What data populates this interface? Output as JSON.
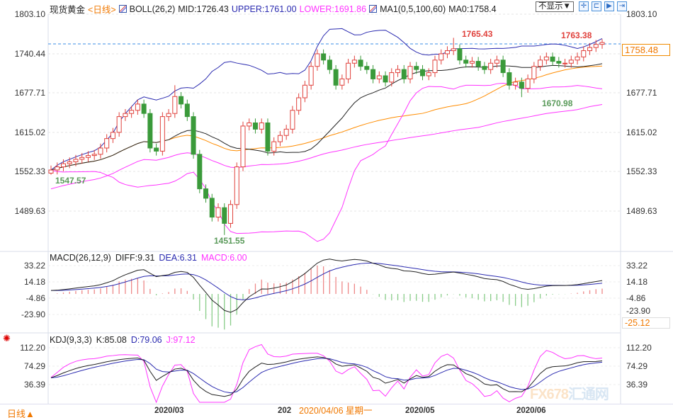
{
  "header": {
    "symbol": "现货黄金",
    "period": "<日线>",
    "boll": "BOLL(26,2)",
    "mid": "MID:1726.43",
    "upper": "UPPER:1761.00",
    "lower": "LOWER:1691.86",
    "ma": "MA1(0,5,100,60)",
    "ma0": "MA0:1758.4"
  },
  "toolbar": {
    "display_select": "不显示▼",
    "buttons": [
      "crosshair",
      "zoom-fit",
      "play",
      "go-end"
    ]
  },
  "price_axis": [
    "1803.10",
    "1740.44",
    "1677.71",
    "1615.02",
    "1552.33",
    "1489.63"
  ],
  "current_price": "1758.48",
  "annotations": {
    "high1": "1765.43",
    "high2": "1763.38",
    "low_jun": "1670.98",
    "low_feb": "1547.57",
    "low_mar": "1451.55"
  },
  "macd": {
    "title": "MACD(26,12,9)",
    "diff": "DIFF:9.31",
    "dea": "DEA:6.31",
    "macd": "MACD:6.00",
    "axis": [
      "33.22",
      "14.18",
      "-4.86",
      "-23.90"
    ],
    "cursor_value": "-25.12"
  },
  "kdj": {
    "title": "KDJ(9,3,3)",
    "k": "K:85.08",
    "d": "D:79.06",
    "j": "J:97.12",
    "axis": [
      "112.20",
      "74.29",
      "36.39"
    ]
  },
  "time_axis": {
    "period_button": "日线▲",
    "labels": [
      "2020/03",
      "202",
      "2020/05",
      "2020/06"
    ],
    "crosshair_date": "2020/04/06 星期一"
  },
  "watermark": {
    "text": "FX678",
    "cn": "汇通网"
  },
  "colors": {
    "up": "#e0413c",
    "down": "#3a9a3a",
    "upper": "#2b2bb0",
    "lower": "#ff33ff",
    "mid": "#222222",
    "ma_orange": "#ff8c00",
    "ma_long": "#ff33ff"
  },
  "chart_data": {
    "type": "candlestick",
    "ylim": [
      1451.55,
      1803.1
    ],
    "closes": [
      1555,
      1560,
      1565,
      1568,
      1572,
      1575,
      1578,
      1580,
      1590,
      1605,
      1615,
      1640,
      1645,
      1650,
      1660,
      1645,
      1590,
      1585,
      1640,
      1645,
      1672,
      1660,
      1640,
      1580,
      1525,
      1510,
      1480,
      1495,
      1470,
      1500,
      1560,
      1625,
      1630,
      1620,
      1630,
      1585,
      1600,
      1610,
      1620,
      1650,
      1670,
      1690,
      1720,
      1740,
      1730,
      1715,
      1690,
      1700,
      1725,
      1730,
      1720,
      1715,
      1700,
      1705,
      1695,
      1710,
      1715,
      1700,
      1720,
      1715,
      1705,
      1710,
      1730,
      1740,
      1745,
      1748,
      1730,
      1725,
      1728,
      1720,
      1715,
      1725,
      1730,
      1710,
      1690,
      1695,
      1685,
      1700,
      1720,
      1730,
      1735,
      1728,
      1725,
      1725,
      1730,
      1735,
      1745,
      1750,
      1755,
      1758
    ]
  }
}
